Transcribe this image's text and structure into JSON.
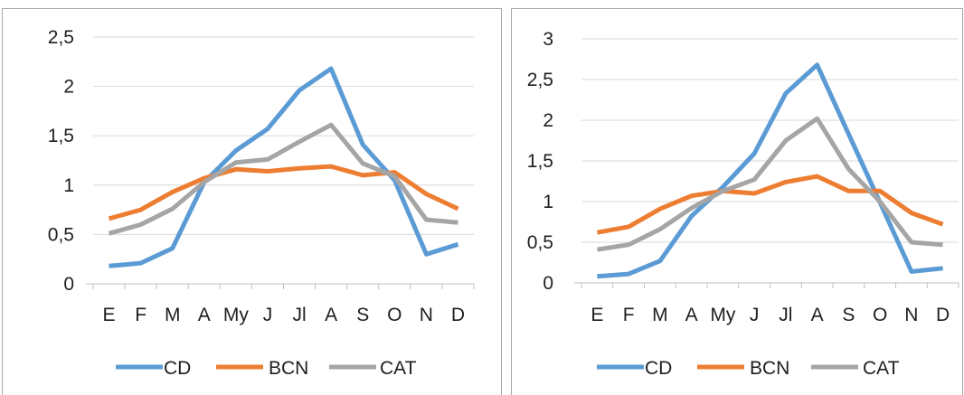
{
  "chart_data": [
    {
      "type": "line",
      "categories": [
        "E",
        "F",
        "M",
        "A",
        "My",
        "J",
        "Jl",
        "A",
        "S",
        "O",
        "N",
        "D"
      ],
      "ylim": [
        0,
        2.5
      ],
      "yticks": [
        "0",
        "0,5",
        "1",
        "1,5",
        "2",
        "2,5"
      ],
      "grid": true,
      "legend_position": "bottom",
      "series": [
        {
          "name": "CD",
          "color": "#5b9bd5",
          "values": [
            0.18,
            0.21,
            0.36,
            1.03,
            1.35,
            1.57,
            1.96,
            2.18,
            1.41,
            1.05,
            0.3,
            0.4
          ]
        },
        {
          "name": "BCN",
          "color": "#ed7d31",
          "values": [
            0.66,
            0.75,
            0.93,
            1.07,
            1.16,
            1.14,
            1.17,
            1.19,
            1.1,
            1.13,
            0.91,
            0.76
          ]
        },
        {
          "name": "CAT",
          "color": "#a5a5a5",
          "values": [
            0.51,
            0.6,
            0.76,
            1.03,
            1.23,
            1.26,
            1.44,
            1.61,
            1.22,
            1.09,
            0.65,
            0.62
          ]
        }
      ]
    },
    {
      "type": "line",
      "categories": [
        "E",
        "F",
        "M",
        "A",
        "My",
        "J",
        "Jl",
        "A",
        "S",
        "O",
        "N",
        "D"
      ],
      "ylim": [
        0,
        3
      ],
      "yticks": [
        "0",
        "0,5",
        "1",
        "1,5",
        "2",
        "2,5",
        "3"
      ],
      "grid": true,
      "legend_position": "bottom",
      "series": [
        {
          "name": "CD",
          "color": "#5b9bd5",
          "values": [
            0.08,
            0.11,
            0.27,
            0.82,
            1.18,
            1.59,
            2.33,
            2.68,
            1.83,
            0.99,
            0.14,
            0.18
          ]
        },
        {
          "name": "BCN",
          "color": "#ed7d31",
          "values": [
            0.62,
            0.69,
            0.91,
            1.07,
            1.13,
            1.1,
            1.24,
            1.31,
            1.13,
            1.13,
            0.86,
            0.72
          ]
        },
        {
          "name": "CAT",
          "color": "#a5a5a5",
          "values": [
            0.41,
            0.47,
            0.66,
            0.92,
            1.13,
            1.27,
            1.75,
            2.02,
            1.4,
            1.0,
            0.5,
            0.47
          ]
        }
      ]
    }
  ]
}
